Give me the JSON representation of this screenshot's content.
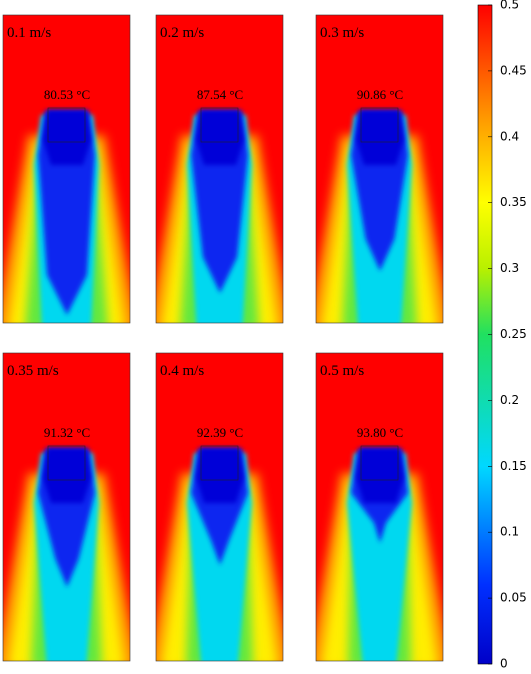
{
  "panels": [
    {
      "label": "0.1 m/s",
      "temperature": "80.53 °C"
    },
    {
      "label": "0.2 m/s",
      "temperature": "87.54 °C"
    },
    {
      "label": "0.3 m/s",
      "temperature": "90.86 °C"
    },
    {
      "label": "0.35 m/s",
      "temperature": "91.32 °C"
    },
    {
      "label": "0.4 m/s",
      "temperature": "92.39 °C"
    },
    {
      "label": "0.5 m/s",
      "temperature": "93.80 °C"
    }
  ],
  "colorbar": {
    "range": [
      0,
      0.5
    ],
    "ticks": [
      0,
      0.05,
      0.1,
      0.15,
      0.2,
      0.25,
      0.3,
      0.35,
      0.4,
      0.45,
      0.5
    ]
  }
}
